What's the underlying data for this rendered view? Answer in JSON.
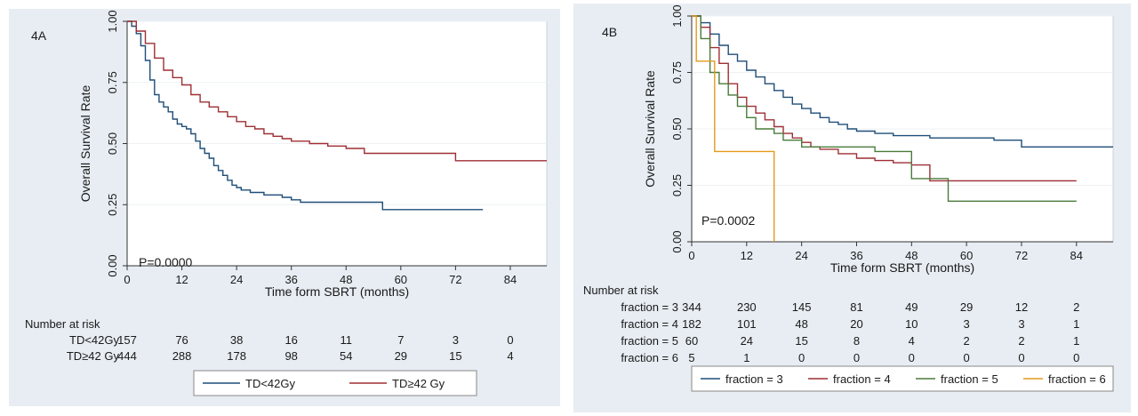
{
  "chart_data": [
    {
      "type": "line",
      "panel_label": "4A",
      "xlabel": "Time form SBRT (months)",
      "ylabel": "Overall Survival Rate",
      "xlim": [
        0,
        92
      ],
      "ylim": [
        0,
        1
      ],
      "x_ticks": [
        0,
        12,
        24,
        36,
        48,
        60,
        72,
        84
      ],
      "y_ticks": [
        "0.00",
        "0.25",
        "0.50",
        "0.75",
        "1.00"
      ],
      "annotation": "P=0.0000",
      "grid": "horizontal",
      "legend_position": "bottom",
      "series": [
        {
          "name": "TD<42Gy",
          "color": "#1f4e79",
          "x": [
            0,
            1,
            2,
            3,
            4,
            5,
            6,
            7,
            8,
            9,
            10,
            11,
            12,
            13,
            14,
            15,
            16,
            17,
            18,
            19,
            20,
            21,
            22,
            23,
            24,
            25,
            26,
            27,
            28,
            30,
            32,
            34,
            36,
            38,
            40,
            44,
            50,
            56,
            60,
            66,
            72,
            78
          ],
          "y": [
            1.0,
            0.98,
            0.95,
            0.9,
            0.84,
            0.76,
            0.7,
            0.67,
            0.65,
            0.63,
            0.6,
            0.58,
            0.57,
            0.56,
            0.54,
            0.51,
            0.48,
            0.46,
            0.44,
            0.41,
            0.39,
            0.37,
            0.35,
            0.33,
            0.32,
            0.31,
            0.31,
            0.3,
            0.3,
            0.29,
            0.29,
            0.28,
            0.27,
            0.26,
            0.26,
            0.26,
            0.26,
            0.23,
            0.23,
            0.23,
            0.23,
            0.23
          ]
        },
        {
          "name": "TD≥42 Gy",
          "color": "#9e2f35",
          "x": [
            0,
            2,
            4,
            6,
            8,
            10,
            12,
            14,
            16,
            18,
            20,
            22,
            24,
            26,
            28,
            30,
            32,
            34,
            36,
            40,
            44,
            48,
            52,
            56,
            60,
            66,
            72,
            80,
            92
          ],
          "y": [
            1.0,
            0.96,
            0.91,
            0.85,
            0.8,
            0.77,
            0.74,
            0.7,
            0.67,
            0.65,
            0.63,
            0.61,
            0.59,
            0.57,
            0.56,
            0.54,
            0.53,
            0.52,
            0.51,
            0.5,
            0.49,
            0.48,
            0.46,
            0.46,
            0.46,
            0.46,
            0.43,
            0.43,
            0.43
          ]
        }
      ],
      "risk_table": {
        "title": "Number at risk",
        "rows": [
          {
            "label": "TD<42Gy",
            "values": [
              "157",
              "76",
              "38",
              "16",
              "11",
              "7",
              "3",
              "0"
            ]
          },
          {
            "label": "TD≥42 Gy",
            "values": [
              "444",
              "288",
              "178",
              "98",
              "54",
              "29",
              "15",
              "4"
            ]
          }
        ]
      }
    },
    {
      "type": "line",
      "panel_label": "4B",
      "xlabel": "Time form SBRT (months)",
      "ylabel": "Overall Survival Rate",
      "xlim": [
        0,
        92
      ],
      "ylim": [
        0,
        1
      ],
      "x_ticks": [
        0,
        12,
        24,
        36,
        48,
        60,
        72,
        84
      ],
      "y_ticks": [
        "0.00",
        "0.25",
        "0.50",
        "0.75",
        "1.00"
      ],
      "annotation": "P=0.0002",
      "grid": "horizontal",
      "legend_position": "bottom",
      "series": [
        {
          "name": "fraction = 3",
          "color": "#1f4e79",
          "x": [
            0,
            2,
            4,
            6,
            8,
            10,
            12,
            14,
            16,
            18,
            20,
            22,
            24,
            26,
            28,
            30,
            32,
            34,
            36,
            40,
            44,
            48,
            52,
            56,
            60,
            66,
            72,
            80,
            92
          ],
          "y": [
            1.0,
            0.97,
            0.92,
            0.87,
            0.83,
            0.8,
            0.76,
            0.73,
            0.7,
            0.67,
            0.64,
            0.61,
            0.59,
            0.57,
            0.55,
            0.53,
            0.52,
            0.5,
            0.49,
            0.48,
            0.47,
            0.47,
            0.46,
            0.46,
            0.46,
            0.45,
            0.42,
            0.42,
            0.42
          ]
        },
        {
          "name": "fraction = 4",
          "color": "#9e2f35",
          "x": [
            0,
            2,
            4,
            6,
            8,
            10,
            12,
            14,
            16,
            18,
            20,
            22,
            24,
            26,
            28,
            32,
            36,
            40,
            44,
            48,
            52,
            56,
            60,
            70,
            84
          ],
          "y": [
            1.0,
            0.95,
            0.86,
            0.79,
            0.7,
            0.64,
            0.6,
            0.57,
            0.54,
            0.51,
            0.48,
            0.46,
            0.44,
            0.42,
            0.41,
            0.39,
            0.37,
            0.36,
            0.35,
            0.34,
            0.27,
            0.27,
            0.27,
            0.27,
            0.27
          ]
        },
        {
          "name": "fraction = 5",
          "color": "#4a7b3a",
          "x": [
            0,
            2,
            4,
            6,
            8,
            10,
            12,
            14,
            16,
            18,
            20,
            24,
            28,
            32,
            36,
            40,
            44,
            48,
            52,
            56,
            60,
            70,
            84
          ],
          "y": [
            1.0,
            0.9,
            0.75,
            0.7,
            0.65,
            0.6,
            0.55,
            0.5,
            0.5,
            0.48,
            0.45,
            0.42,
            0.42,
            0.42,
            0.42,
            0.4,
            0.4,
            0.28,
            0.28,
            0.18,
            0.18,
            0.18,
            0.18
          ]
        },
        {
          "name": "fraction = 6",
          "color": "#e39a1c",
          "x": [
            0,
            1,
            5,
            12,
            18
          ],
          "y": [
            1.0,
            0.8,
            0.4,
            0.4,
            0.0
          ]
        }
      ],
      "risk_table": {
        "title": "Number at risk",
        "rows": [
          {
            "label": "fraction = 3",
            "values": [
              "344",
              "230",
              "145",
              "81",
              "49",
              "29",
              "12",
              "2"
            ]
          },
          {
            "label": "fraction = 4",
            "values": [
              "182",
              "101",
              "48",
              "20",
              "10",
              "3",
              "3",
              "1"
            ]
          },
          {
            "label": "fraction = 5",
            "values": [
              "60",
              "24",
              "15",
              "8",
              "4",
              "2",
              "2",
              "1"
            ]
          },
          {
            "label": "fraction = 6",
            "values": [
              "5",
              "1",
              "0",
              "0",
              "0",
              "0",
              "0",
              "0"
            ]
          }
        ]
      }
    }
  ]
}
